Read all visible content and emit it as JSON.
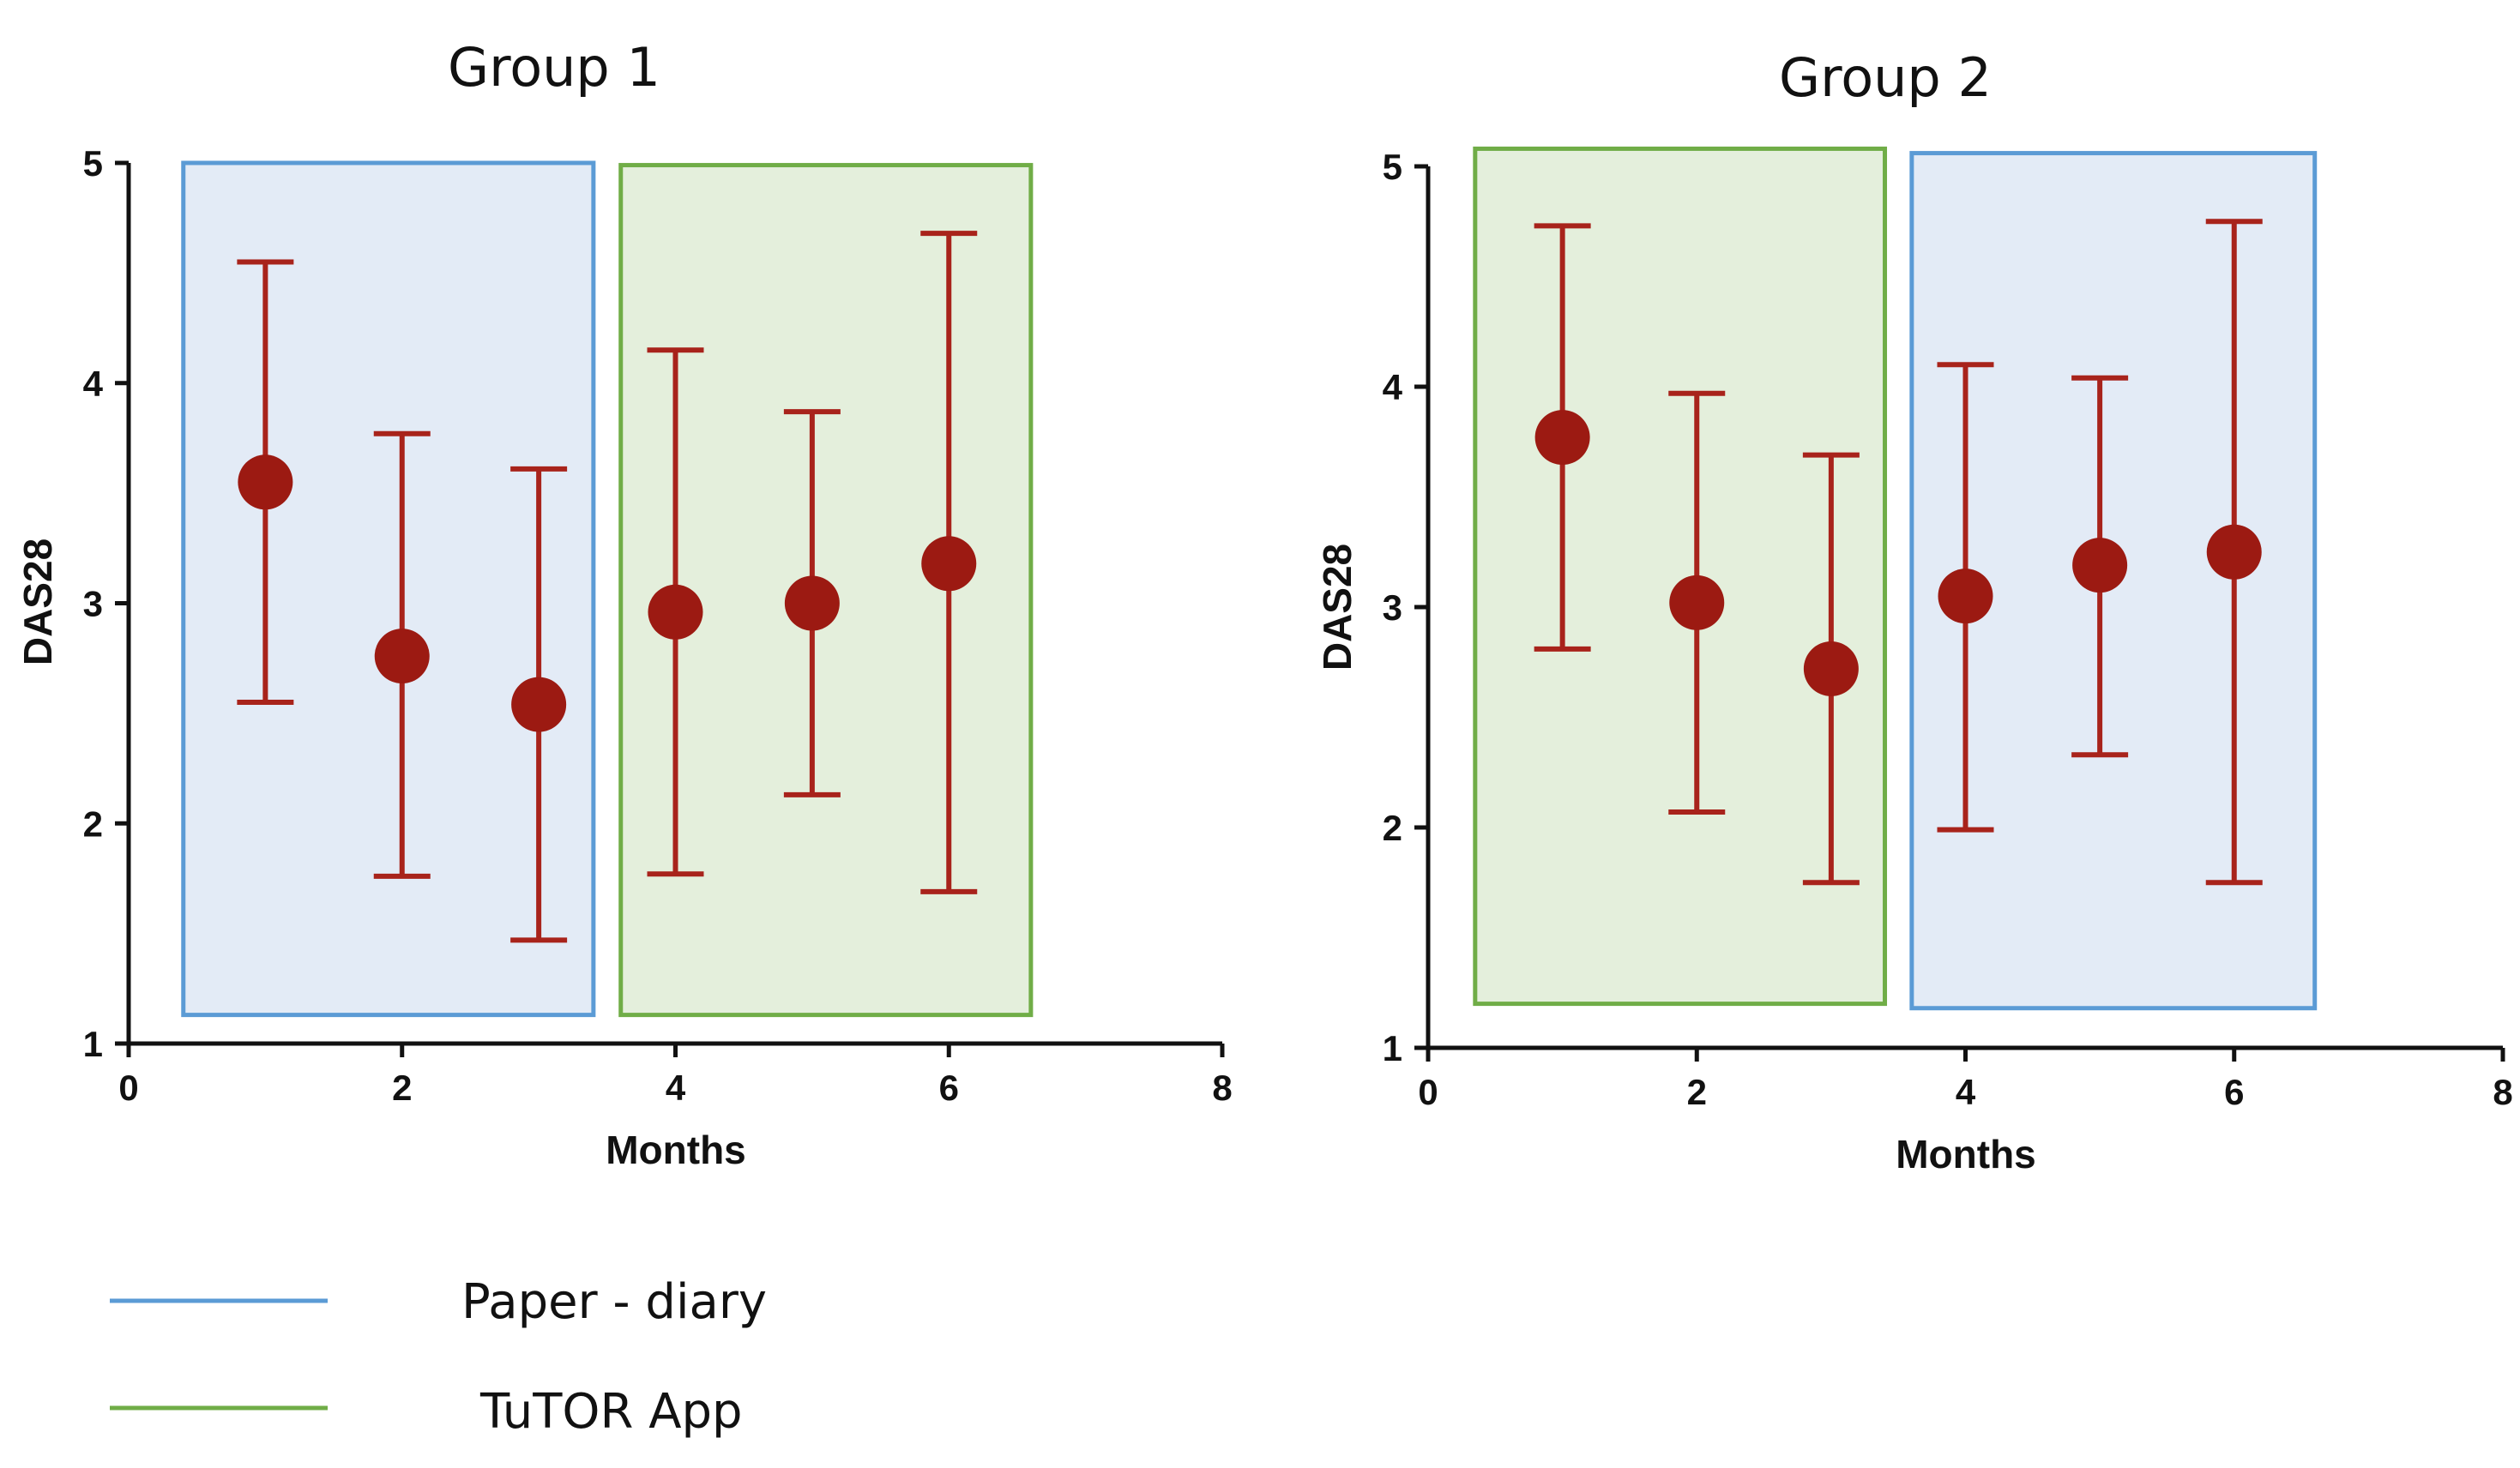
{
  "colors": {
    "marker": "#9c1a12",
    "errorbar": "#a8231b",
    "paper_fill": "#e3ebf6",
    "paper_stroke": "#5b9bd5",
    "app_fill": "#e4efdc",
    "app_stroke": "#70ad47",
    "axis": "#111111"
  },
  "legend": {
    "paper": {
      "label": "Paper - diary",
      "color": "#5b9bd5"
    },
    "app": {
      "label": "TuTOR App",
      "color": "#70ad47"
    }
  },
  "chart_data": [
    {
      "type": "scatter",
      "title": "Group 1",
      "xlabel": "Months",
      "ylabel": "DAS28",
      "xlim": [
        0,
        8
      ],
      "ylim": [
        1,
        5
      ],
      "xticks": [
        0,
        2,
        4,
        6,
        8
      ],
      "yticks": [
        1,
        2,
        3,
        4,
        5
      ],
      "points": [
        {
          "x": 1,
          "y": 3.55,
          "err_low": 2.55,
          "err_high": 4.55
        },
        {
          "x": 2,
          "y": 2.76,
          "err_low": 1.76,
          "err_high": 3.77
        },
        {
          "x": 3,
          "y": 2.54,
          "err_low": 1.47,
          "err_high": 3.61
        },
        {
          "x": 4,
          "y": 2.96,
          "err_low": 1.77,
          "err_high": 4.15
        },
        {
          "x": 5,
          "y": 3.0,
          "err_low": 2.13,
          "err_high": 3.87
        },
        {
          "x": 6,
          "y": 3.18,
          "err_low": 1.69,
          "err_high": 4.68
        }
      ],
      "shaded_regions": [
        {
          "phase": "paper",
          "x_range": [
            0.4,
            3.4
          ],
          "y_range": [
            1.13,
            5.0
          ]
        },
        {
          "phase": "app",
          "x_range": [
            3.6,
            6.6
          ],
          "y_range": [
            1.13,
            4.99
          ]
        }
      ]
    },
    {
      "type": "scatter",
      "title": "Group 2",
      "xlabel": "Months",
      "ylabel": "DAS28",
      "xlim": [
        0,
        8
      ],
      "ylim": [
        1,
        5
      ],
      "xticks": [
        0,
        2,
        4,
        6,
        8
      ],
      "yticks": [
        1,
        2,
        3,
        4,
        5
      ],
      "points": [
        {
          "x": 1,
          "y": 3.77,
          "err_low": 2.81,
          "err_high": 4.73
        },
        {
          "x": 2,
          "y": 3.02,
          "err_low": 2.07,
          "err_high": 3.97
        },
        {
          "x": 3,
          "y": 2.72,
          "err_low": 1.75,
          "err_high": 3.69
        },
        {
          "x": 4,
          "y": 3.05,
          "err_low": 1.99,
          "err_high": 4.1
        },
        {
          "x": 5,
          "y": 3.19,
          "err_low": 2.33,
          "err_high": 4.04
        },
        {
          "x": 6,
          "y": 3.25,
          "err_low": 1.75,
          "err_high": 4.75
        }
      ],
      "shaded_regions": [
        {
          "phase": "app",
          "x_range": [
            0.35,
            3.4
          ],
          "y_range": [
            1.2,
            5.08
          ]
        },
        {
          "phase": "paper",
          "x_range": [
            3.6,
            6.6
          ],
          "y_range": [
            1.18,
            5.06
          ]
        }
      ]
    }
  ]
}
